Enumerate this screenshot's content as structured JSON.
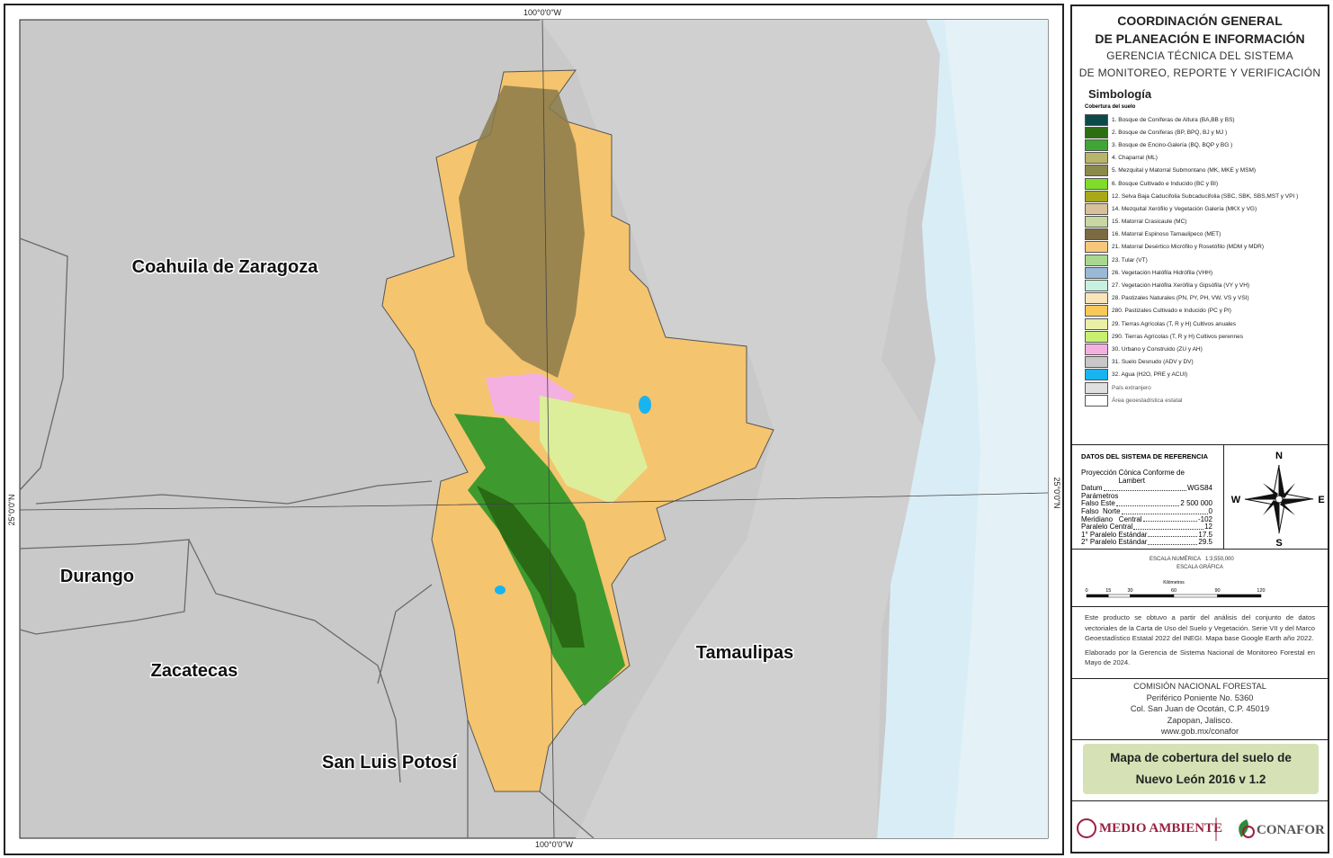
{
  "map": {
    "grid_labels": {
      "top": "100°0'0\"W",
      "bottom": "100°0'0\"W",
      "left": "25°0'0\"N",
      "right": "25°0'0\"N"
    },
    "states": [
      "Coahuila de Zaragoza",
      "Durango",
      "Zacatecas",
      "San Luis Potosí",
      "Tamaulipas"
    ]
  },
  "header": {
    "line1": "COORDINACIÓN GENERAL",
    "line2": "DE PLANEACIÓN E INFORMACIÓN",
    "line3": "GERENCIA TÉCNICA DEL SISTEMA",
    "line4": "DE MONITOREO, REPORTE Y VERIFICACIÓN"
  },
  "legend": {
    "title": "Simbología",
    "subtitle": "Cobertura del suelo",
    "items": [
      {
        "label": "1. Bosque de Coníferas de Altura (BA,BB y BS)",
        "color": "#0b4a4a"
      },
      {
        "label": "2. Bosque de Coníferas (BP, BPQ, BJ y MJ )",
        "color": "#2e6e12"
      },
      {
        "label": "3. Bosque de Encino-Galería (BQ, BQP y BG )",
        "color": "#3fa535"
      },
      {
        "label": "4.  Chaparral (ML)",
        "color": "#b8b46a"
      },
      {
        "label": "5. Mezquital y Matorral Submontano (MK, MKE y MSM)",
        "color": "#8a8a4a"
      },
      {
        "label": "6. Bosque Cultivado e Inducido (BC y BI)",
        "color": "#7fdc2a"
      },
      {
        "label": "12. Selva Baja Caducifolia Subcaducifolia (SBC, SBK, SBS,MST y VPI )",
        "color": "#a8a81a"
      },
      {
        "label": "14. Mezquital Xerófilo y Vegetación Galería (MKX y VG)",
        "color": "#d8c09a"
      },
      {
        "label": "15. Matorral Crasicaule (MC)",
        "color": "#c8d8a0"
      },
      {
        "label": "16. Matorral  Espinoso Tamaulipeco (MET)",
        "color": "#7c6a42"
      },
      {
        "label": "21. Matorral Desértico Micrófilo y Rosetófilo (MDM y MDR)",
        "color": "#f7c87a"
      },
      {
        "label": "23. Tular (VT)",
        "color": "#a8d890"
      },
      {
        "label": "26. Vegetación Halófila Hidrófila (VHH)",
        "color": "#9ab8d8"
      },
      {
        "label": "27. Vegetación Halófila Xerófila  y Gipsófila (VY y VH)",
        "color": "#c8f0e0"
      },
      {
        "label": "28. Pastizales Naturales (PN, PY, PH, VW, VS y VSI)",
        "color": "#f8e4b8"
      },
      {
        "label": "280. Pastizales Cultivado e Inducido (PC y PI)",
        "color": "#f8c858"
      },
      {
        "label": "29. Tierras Agrícolas (T, R y H) Cultivos anuales",
        "color": "#e8f0a8"
      },
      {
        "label": "290. Tierras Agrícolas (T, R y H) Cultivos perennes",
        "color": "#c8f070"
      },
      {
        "label": "30. Urbano y Construido (ZU y AH)",
        "color": "#f4b0e0"
      },
      {
        "label": "31. Suelo Desnudo (ADV y DV)",
        "color": "#c8c8c8"
      },
      {
        "label": "32. Agua (H2O, PRE y ACUI)",
        "color": "#18b4f0"
      },
      {
        "label": "País extranjero",
        "color": "#e0e0e0"
      },
      {
        "label": "Área geoestadística estatal",
        "color": "#ffffff"
      }
    ]
  },
  "reference": {
    "title": "DATOS DEL SISTEMA DE REFERENCIA",
    "rows": [
      {
        "label": "Proyección",
        "value": "Cónica Conforme de Lambert"
      },
      {
        "label": "Datum",
        "value": "WGS84"
      },
      {
        "label": "Parámetros",
        "value": ""
      },
      {
        "label": "Falso Este",
        "value": "2 500 000"
      },
      {
        "label": "Falso  Norte",
        "value": "0"
      },
      {
        "label": "Meridiano   Central",
        "value": "-102"
      },
      {
        "label": "Paralelo Central",
        "value": "12"
      },
      {
        "label": "1° Paralelo Estándar",
        "value": "17.5"
      },
      {
        "label": "2° Paralelo Estándar",
        "value": "29.5"
      }
    ],
    "compass": {
      "n": "N",
      "s": "S",
      "e": "E",
      "w": "W"
    }
  },
  "scale": {
    "numeric_label": "ESCALA NUMÉRICA",
    "numeric": "1:3,550,000",
    "graphic_label": "ESCALA GRÁFICA",
    "units": "Kilómetros",
    "ticks": [
      0,
      15,
      30,
      60,
      90,
      120
    ]
  },
  "notes": {
    "p1": "Este producto se obtuvo a partir del análisis del conjunto de datos vectoriales de la Carta de Uso del Suelo y Vegetación. Serie VII y del Marco Geoestadístico Estatal 2022 del INEGI. Mapa base Google Earth año 2022.",
    "p2": "Elaborado por la Gerencia de Sistema Nacional de Monitoreo Forestal en Mayo de 2024."
  },
  "address": [
    "COMISIÓN NACIONAL FORESTAL",
    "Periférico Poniente No. 5360",
    "Col. San Juan de Ocotán, C.P. 45019",
    "Zapopan, Jalisco.",
    "www.gob.mx/conafor"
  ],
  "title": {
    "line1": "Mapa de cobertura del suelo de",
    "line2": "Nuevo León 2016 v 1.2"
  },
  "logos": {
    "left": "MEDIO AMBIENTE",
    "right": "CONAFOR"
  }
}
